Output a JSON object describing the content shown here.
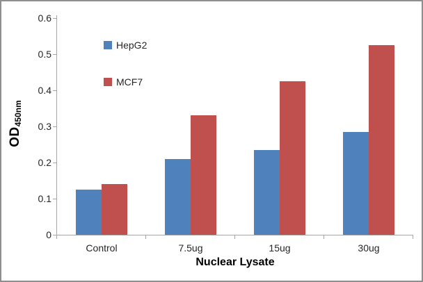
{
  "chart_data": {
    "type": "bar",
    "categories": [
      "Control",
      "7.5ug",
      "15ug",
      "30ug"
    ],
    "series": [
      {
        "name": "HepG2",
        "color": "#4F81BD",
        "values": [
          0.125,
          0.21,
          0.235,
          0.285
        ]
      },
      {
        "name": "MCF7",
        "color": "#C0504D",
        "values": [
          0.14,
          0.33,
          0.425,
          0.525
        ]
      }
    ],
    "title": "",
    "xlabel": "Nuclear Lysate",
    "ylabel": "OD",
    "ylabel_subscript": "450nm",
    "ylim": [
      0,
      0.6
    ],
    "yticks": [
      0,
      0.1,
      0.2,
      0.3,
      0.4,
      0.5,
      0.6
    ],
    "ytick_labels": [
      "0",
      "0.1",
      "0.2",
      "0.3",
      "0.4",
      "0.5",
      "0.6"
    ],
    "grid": false,
    "legend_position": "upper-left-inside"
  },
  "colors": {
    "axis": "#a6a6a6",
    "text": "#262626",
    "background": "#ffffff",
    "frame_border": "#8e8e8e"
  }
}
